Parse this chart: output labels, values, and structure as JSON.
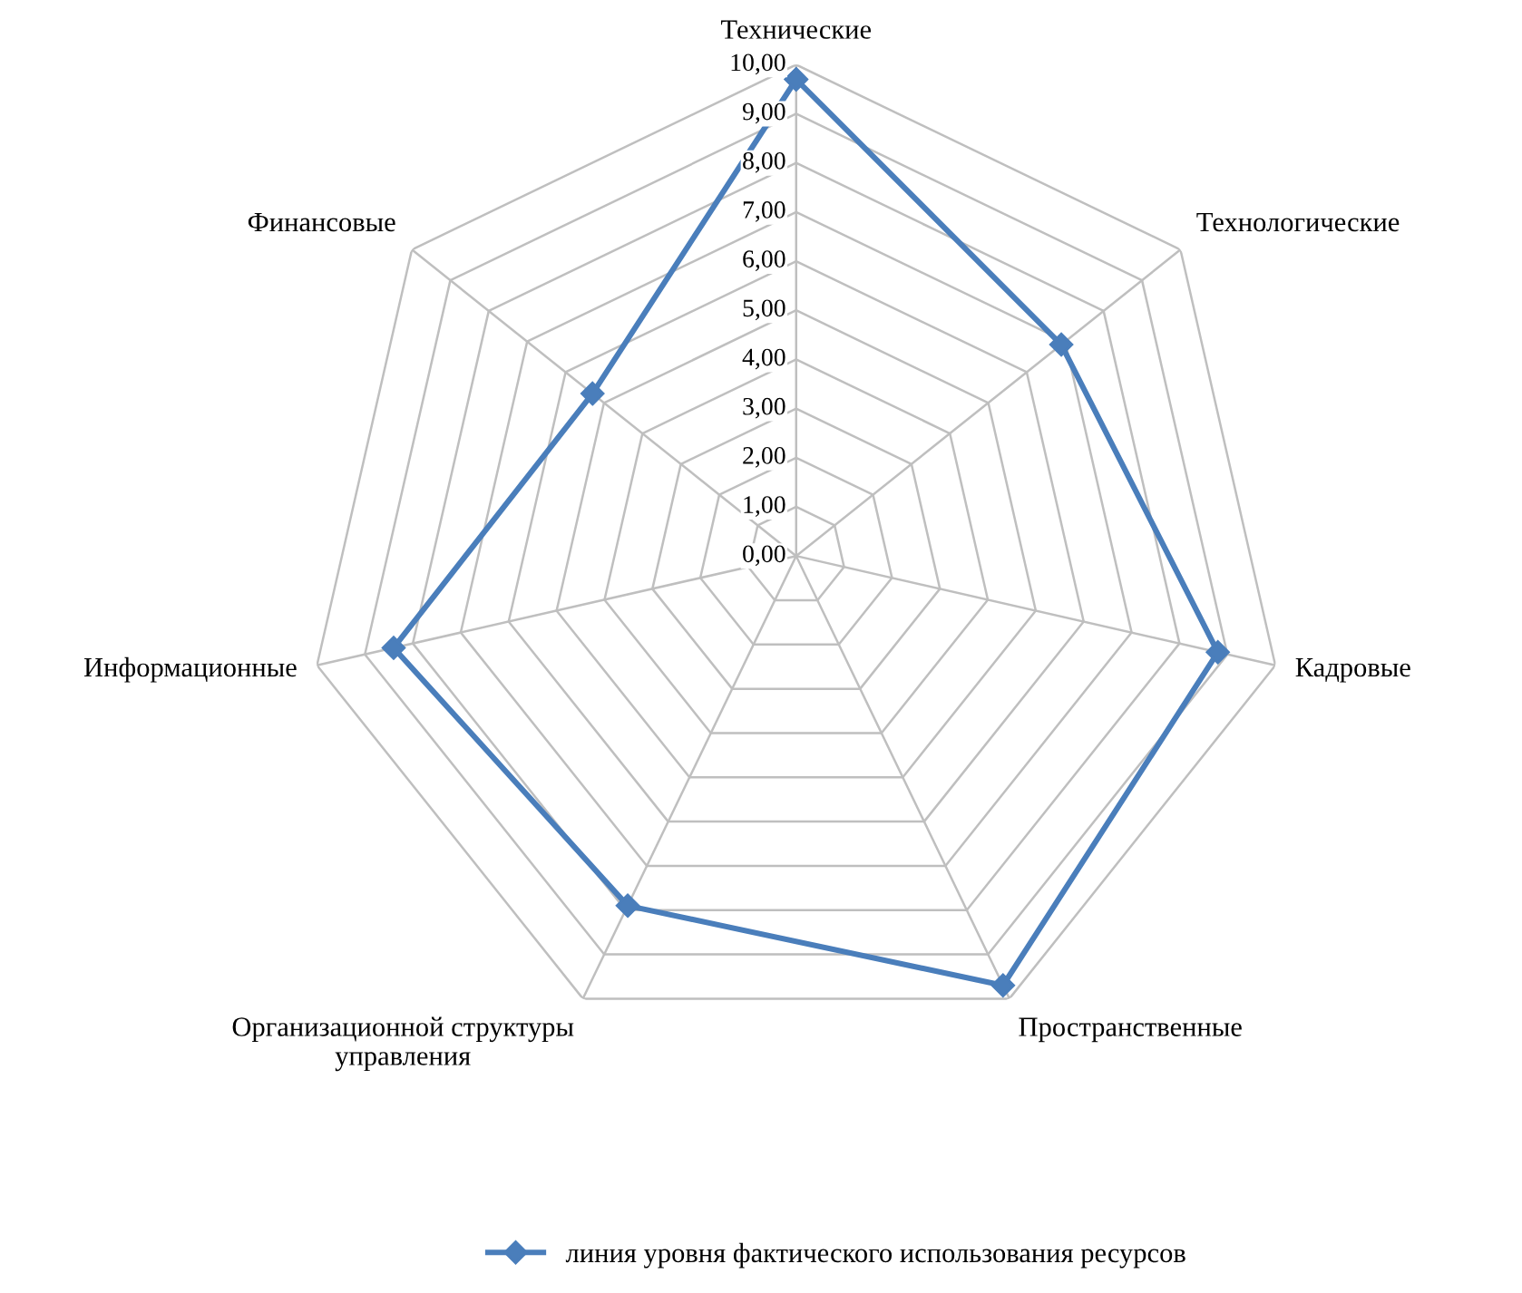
{
  "chart_data": {
    "type": "radar",
    "categories": [
      "Технические",
      "Технологические",
      "Кадровые",
      "Пространственные",
      "Организационной структуры управления",
      "Информационные",
      "Финансовые"
    ],
    "series": [
      {
        "name": "линия уровня фактического использования ресурсов",
        "color": "#4a7ebb",
        "values": [
          9.7,
          6.9,
          8.8,
          9.7,
          7.9,
          8.4,
          5.3
        ]
      }
    ],
    "ylim": [
      0,
      10
    ],
    "yticks": [
      {
        "value": 0,
        "label": "0,00"
      },
      {
        "value": 1,
        "label": "1,00"
      },
      {
        "value": 2,
        "label": "2,00"
      },
      {
        "value": 3,
        "label": "3,00"
      },
      {
        "value": 4,
        "label": "4,00"
      },
      {
        "value": 5,
        "label": "5,00"
      },
      {
        "value": 6,
        "label": "6,00"
      },
      {
        "value": 7,
        "label": "7,00"
      },
      {
        "value": 8,
        "label": "8,00"
      },
      {
        "value": 9,
        "label": "9,00"
      },
      {
        "value": 10,
        "label": "10,00"
      }
    ],
    "grid": true,
    "legend": "bottom",
    "marker": "diamond",
    "line_style": "solid"
  }
}
